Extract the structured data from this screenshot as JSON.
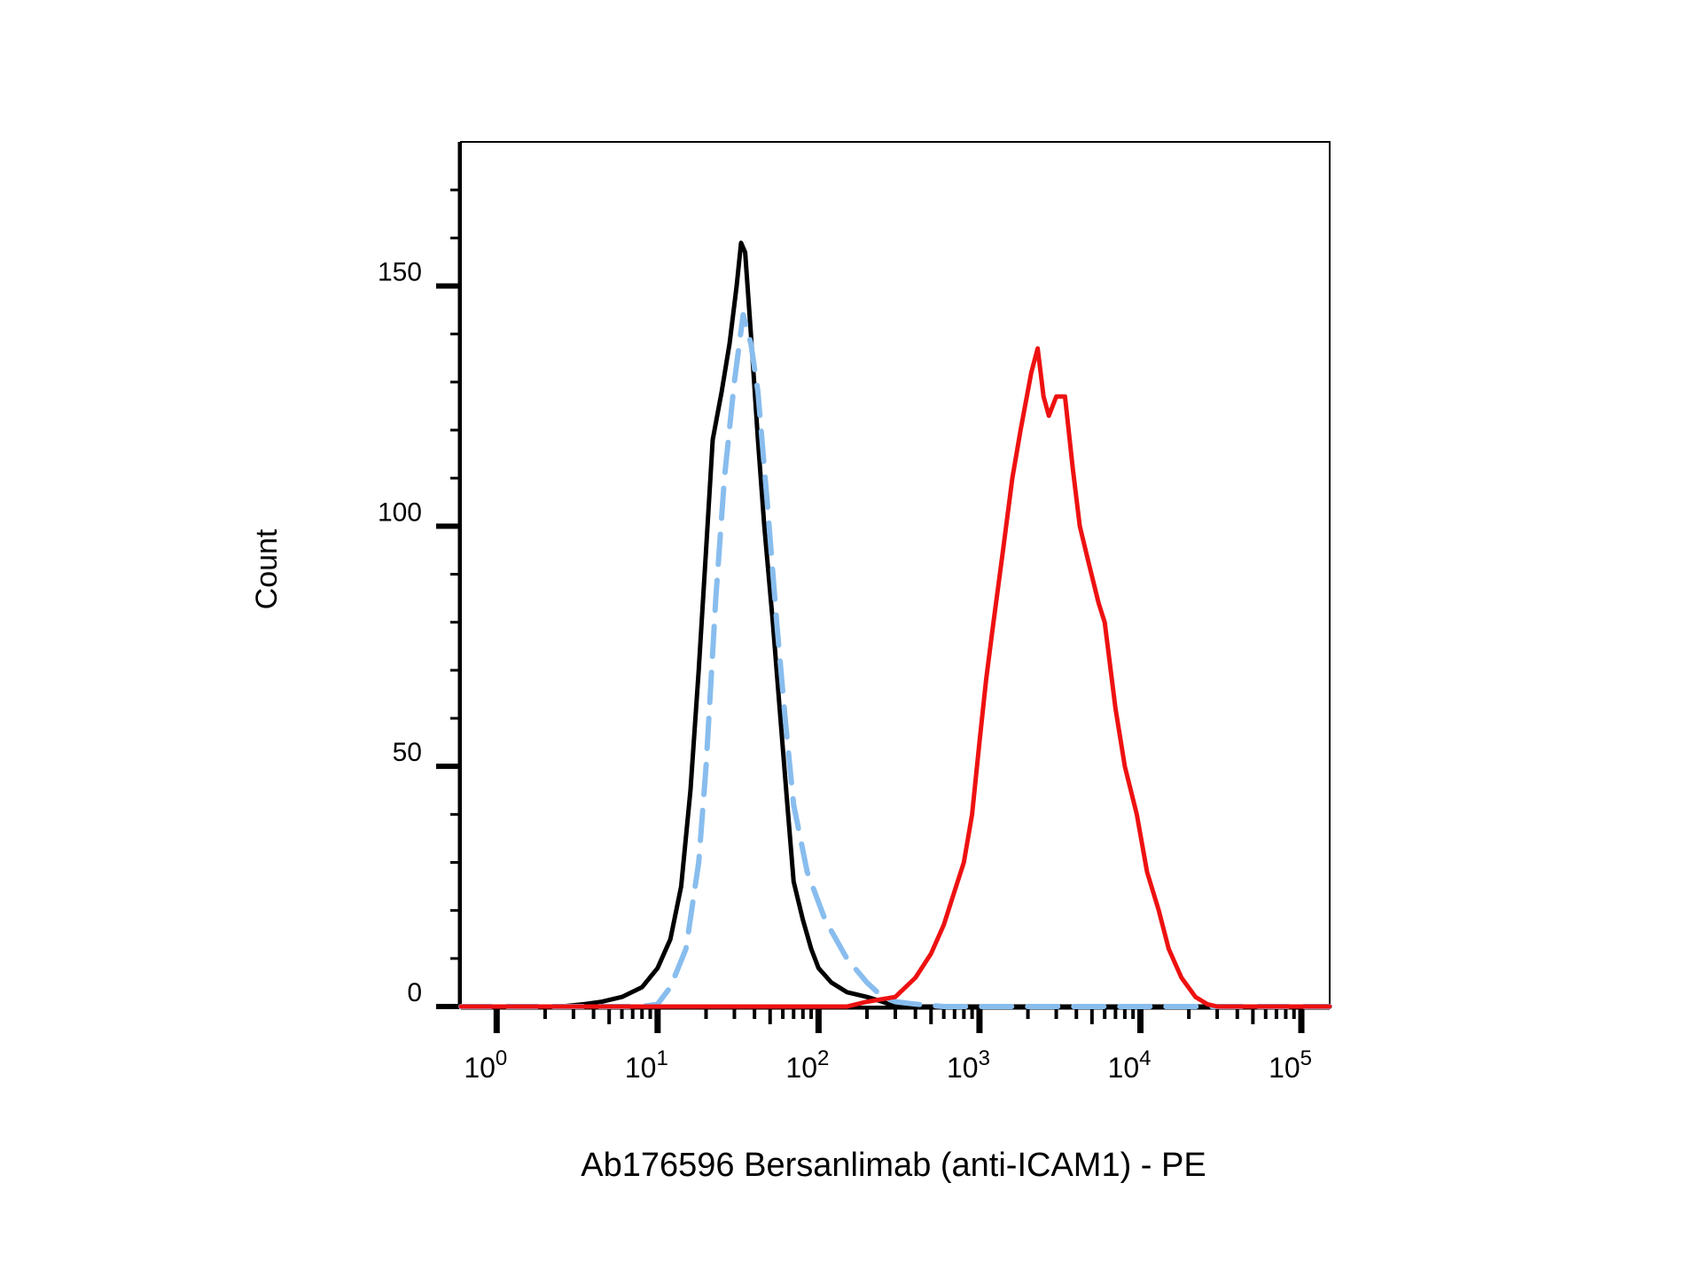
{
  "chart_data": {
    "type": "line",
    "title": "",
    "xlabel": "Ab176596 Bersanlimab (anti-ICAM1) - PE",
    "ylabel": "Count",
    "x_scale": "log",
    "xlim": [
      0.6,
      150000
    ],
    "ylim": [
      0,
      180
    ],
    "grid": false,
    "legend": "none",
    "x_ticks": [
      {
        "base": "10",
        "exp": "0",
        "value": 1
      },
      {
        "base": "10",
        "exp": "1",
        "value": 10
      },
      {
        "base": "10",
        "exp": "2",
        "value": 100
      },
      {
        "base": "10",
        "exp": "3",
        "value": 1000
      },
      {
        "base": "10",
        "exp": "4",
        "value": 10000
      },
      {
        "base": "10",
        "exp": "5",
        "value": 100000
      }
    ],
    "y_ticks": [
      {
        "label": "0",
        "value": 0
      },
      {
        "label": "50",
        "value": 50
      },
      {
        "label": "100",
        "value": 100
      },
      {
        "label": "150",
        "value": 150
      }
    ],
    "series": [
      {
        "color": "#000000",
        "style": "solid",
        "points": [
          [
            0.6,
            0
          ],
          [
            2.5,
            0
          ],
          [
            3.5,
            0.5
          ],
          [
            4.5,
            1
          ],
          [
            6,
            2
          ],
          [
            8,
            4
          ],
          [
            10,
            8
          ],
          [
            12,
            14
          ],
          [
            14,
            25
          ],
          [
            16,
            45
          ],
          [
            18,
            70
          ],
          [
            20,
            95
          ],
          [
            22,
            118
          ],
          [
            25,
            128
          ],
          [
            28,
            138
          ],
          [
            31,
            150
          ],
          [
            33,
            159
          ],
          [
            35,
            157
          ],
          [
            38,
            140
          ],
          [
            42,
            118
          ],
          [
            46,
            100
          ],
          [
            52,
            80
          ],
          [
            58,
            60
          ],
          [
            64,
            42
          ],
          [
            70,
            26
          ],
          [
            80,
            18
          ],
          [
            90,
            12
          ],
          [
            100,
            8
          ],
          [
            120,
            5
          ],
          [
            150,
            3
          ],
          [
            200,
            2
          ],
          [
            250,
            1
          ],
          [
            300,
            0
          ],
          [
            150000,
            0
          ]
        ]
      },
      {
        "color": "#88BDEE",
        "style": "dashed",
        "points": [
          [
            0.6,
            0
          ],
          [
            5,
            0
          ],
          [
            8,
            0
          ],
          [
            10,
            0.5
          ],
          [
            12,
            4
          ],
          [
            15,
            12
          ],
          [
            18,
            30
          ],
          [
            20,
            50
          ],
          [
            23,
            85
          ],
          [
            26,
            110
          ],
          [
            30,
            130
          ],
          [
            34,
            144
          ],
          [
            38,
            138
          ],
          [
            42,
            128
          ],
          [
            48,
            105
          ],
          [
            55,
            80
          ],
          [
            62,
            60
          ],
          [
            70,
            42
          ],
          [
            85,
            28
          ],
          [
            110,
            18
          ],
          [
            150,
            10
          ],
          [
            200,
            5
          ],
          [
            250,
            2
          ],
          [
            300,
            1
          ],
          [
            400,
            0.5
          ],
          [
            600,
            0
          ],
          [
            150000,
            0
          ]
        ]
      },
      {
        "color": "#EE1111",
        "style": "solid",
        "points": [
          [
            0.6,
            0
          ],
          [
            150,
            0
          ],
          [
            200,
            1
          ],
          [
            300,
            2
          ],
          [
            400,
            6
          ],
          [
            500,
            11
          ],
          [
            600,
            17
          ],
          [
            700,
            24
          ],
          [
            800,
            30
          ],
          [
            900,
            40
          ],
          [
            1000,
            55
          ],
          [
            1100,
            68
          ],
          [
            1200,
            78
          ],
          [
            1400,
            95
          ],
          [
            1600,
            110
          ],
          [
            1800,
            120
          ],
          [
            2100,
            132
          ],
          [
            2300,
            137
          ],
          [
            2500,
            127
          ],
          [
            2700,
            123
          ],
          [
            3000,
            127
          ],
          [
            3400,
            127
          ],
          [
            3800,
            112
          ],
          [
            4200,
            100
          ],
          [
            4800,
            92
          ],
          [
            5500,
            84
          ],
          [
            6000,
            80
          ],
          [
            7000,
            62
          ],
          [
            8000,
            50
          ],
          [
            9500,
            40
          ],
          [
            11000,
            28
          ],
          [
            13000,
            20
          ],
          [
            15000,
            12
          ],
          [
            18000,
            6
          ],
          [
            22000,
            2
          ],
          [
            26000,
            0.5
          ],
          [
            30000,
            0
          ],
          [
            150000,
            0
          ]
        ]
      }
    ]
  }
}
